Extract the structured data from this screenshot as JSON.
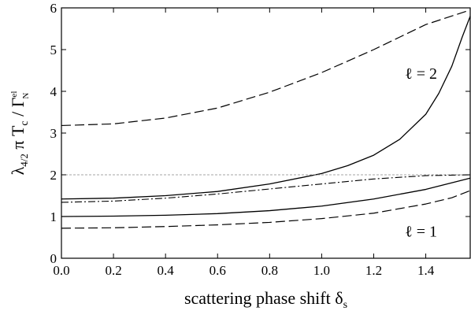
{
  "chart_data": {
    "type": "line",
    "xlabel": {
      "main": "scattering phase shift δ",
      "sub": "s"
    },
    "ylabel": {
      "lambda": "λ",
      "lambda_sub": "4/2",
      "rest": " π T",
      "tc_sub": "c",
      "slash": " / Γ",
      "gamma_sup": "el",
      "gamma_sub": "N"
    },
    "xlim": [
      0,
      1.5708
    ],
    "ylim": [
      0,
      6
    ],
    "xticks": [
      0.0,
      0.2,
      0.4,
      0.6,
      0.8,
      1.0,
      1.2,
      1.4
    ],
    "xtick_labels": [
      "0.0",
      "0.2",
      "0.4",
      "0.6",
      "0.8",
      "1.0",
      "1.2",
      "1.4"
    ],
    "yticks": [
      0,
      1,
      2,
      3,
      4,
      5,
      6
    ],
    "ytick_labels": [
      "0",
      "1",
      "2",
      "3",
      "4",
      "5",
      "6"
    ],
    "grid": false,
    "annotations": [
      {
        "text": "ℓ = 2",
        "x": 1.32,
        "y": 4.3
      },
      {
        "text": "ℓ = 1",
        "x": 1.32,
        "y": 0.52
      }
    ],
    "series": [
      {
        "style": "dashed",
        "x": [
          0.0,
          0.2,
          0.4,
          0.6,
          0.8,
          1.0,
          1.2,
          1.4,
          1.5708
        ],
        "y": [
          3.18,
          3.22,
          3.36,
          3.6,
          3.98,
          4.45,
          5.0,
          5.6,
          5.95
        ]
      },
      {
        "style": "solid",
        "x": [
          0.0,
          0.2,
          0.4,
          0.6,
          0.8,
          1.0,
          1.1,
          1.2,
          1.3,
          1.4,
          1.45,
          1.5,
          1.54,
          1.5708
        ],
        "y": [
          1.42,
          1.44,
          1.5,
          1.6,
          1.78,
          2.03,
          2.22,
          2.47,
          2.85,
          3.45,
          3.95,
          4.6,
          5.3,
          5.8
        ]
      },
      {
        "style": "dotted-reference",
        "x": [
          0.0,
          1.5708
        ],
        "y": [
          2.0,
          2.0
        ]
      },
      {
        "style": "dash-dot",
        "x": [
          0.0,
          0.2,
          0.4,
          0.6,
          0.8,
          1.0,
          1.2,
          1.4,
          1.5708
        ],
        "y": [
          1.34,
          1.37,
          1.44,
          1.54,
          1.66,
          1.78,
          1.9,
          1.98,
          2.0
        ]
      },
      {
        "style": "solid",
        "x": [
          0.0,
          0.2,
          0.4,
          0.6,
          0.8,
          1.0,
          1.2,
          1.4,
          1.5708
        ],
        "y": [
          1.0,
          1.01,
          1.03,
          1.07,
          1.14,
          1.25,
          1.42,
          1.65,
          1.92
        ]
      },
      {
        "style": "dashed",
        "x": [
          0.0,
          0.2,
          0.4,
          0.6,
          0.8,
          1.0,
          1.2,
          1.4,
          1.5,
          1.5708
        ],
        "y": [
          0.72,
          0.73,
          0.76,
          0.8,
          0.86,
          0.95,
          1.08,
          1.3,
          1.45,
          1.62
        ]
      }
    ]
  }
}
